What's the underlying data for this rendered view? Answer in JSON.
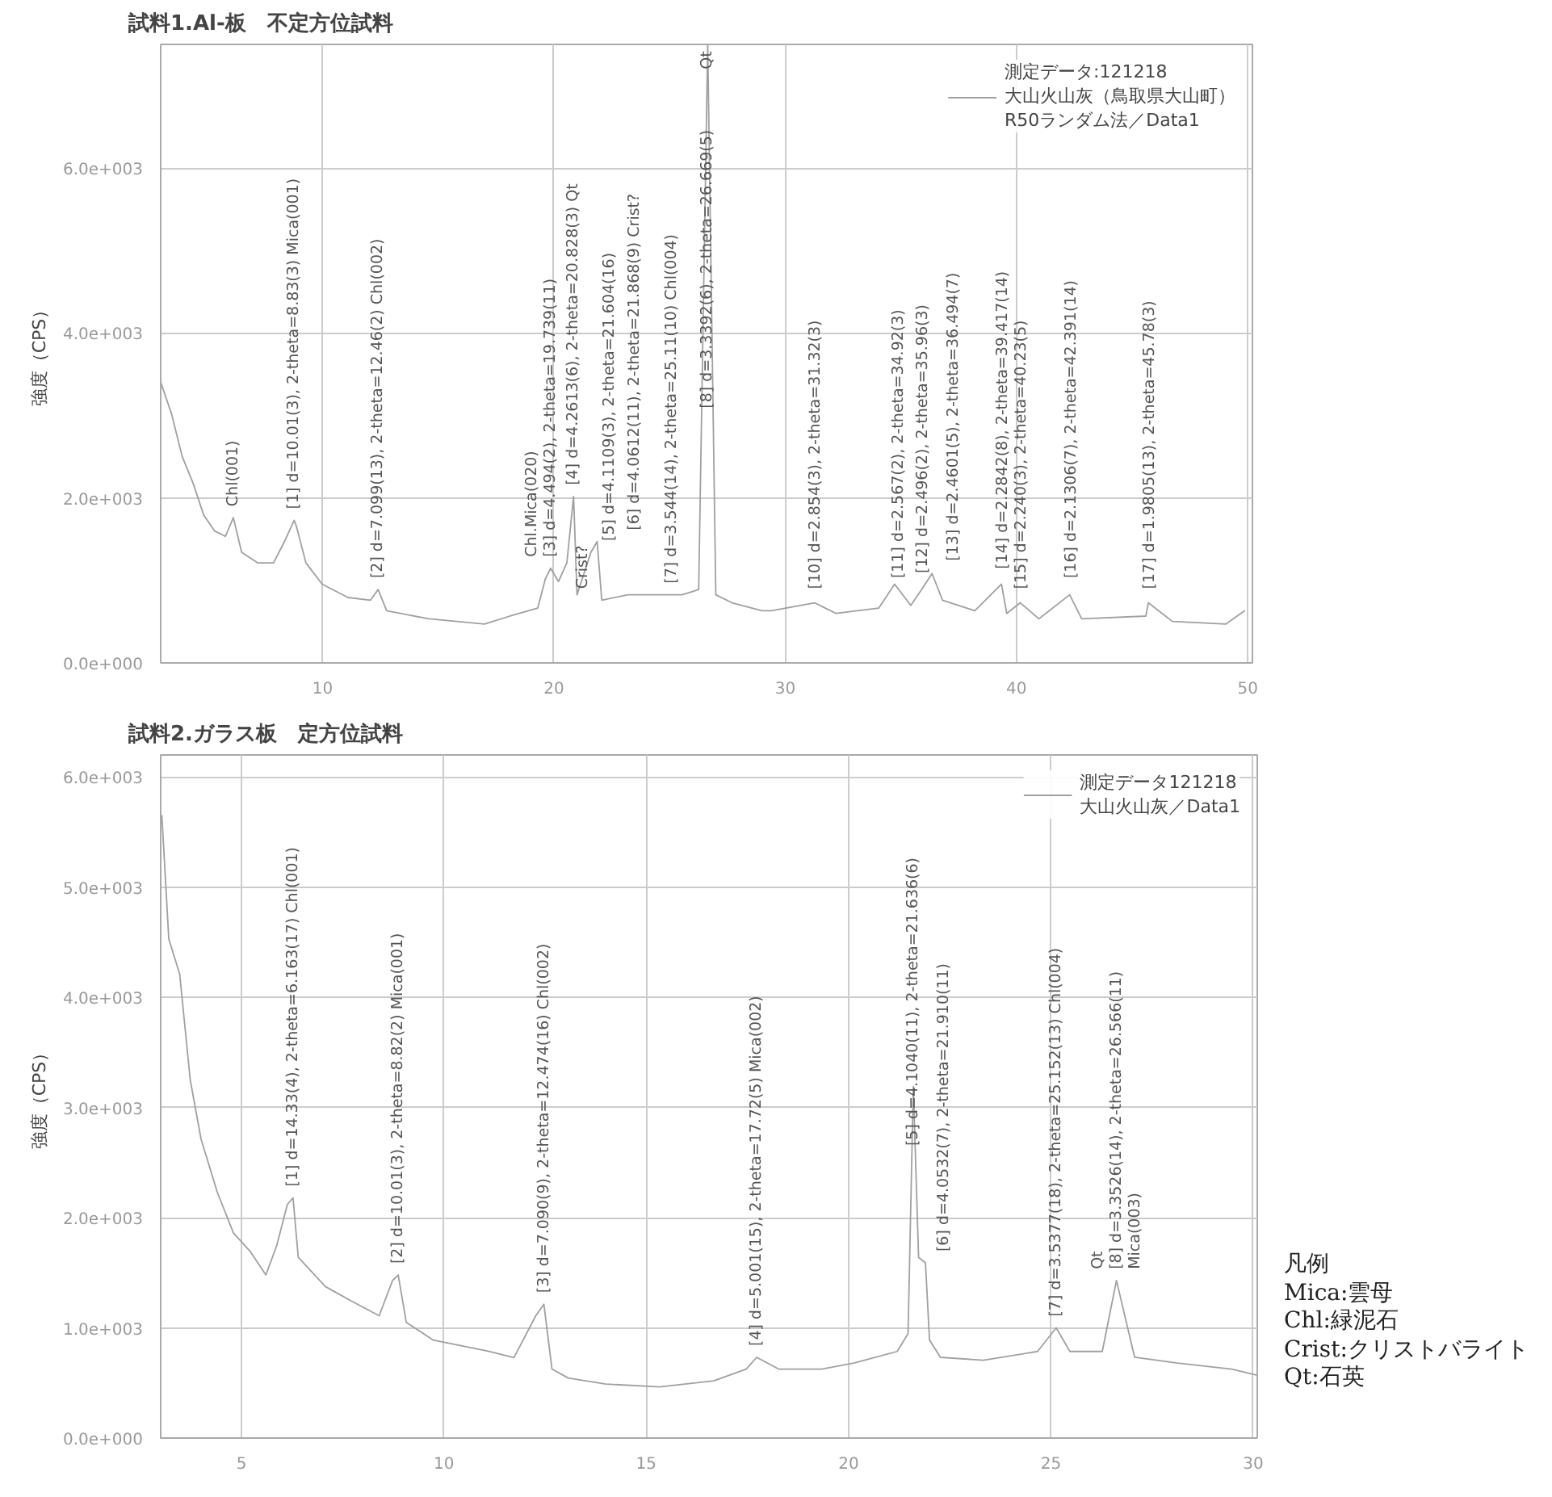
{
  "chart_data": [
    {
      "type": "line",
      "title": "試料1.Al-板　不定方位試料",
      "ylabel": "強度（CPS）",
      "xlim": [
        3,
        50.2
      ],
      "ylim": [
        0,
        7500
      ],
      "xticks": [
        10,
        20,
        30,
        40,
        50
      ],
      "yticks": [
        {
          "value": 0,
          "label": "0.0e+000"
        },
        {
          "value": 2000,
          "label": "2.0e+003"
        },
        {
          "value": 4000,
          "label": "4.0e+003"
        },
        {
          "value": 6000,
          "label": "6.0e+003"
        }
      ],
      "grid": true,
      "legend": "top right",
      "series": [
        {
          "name": "測定データ:121218\n大山火山灰（鳥取県大山町）\nR50ランダム法／Data1",
          "color": "#a0a0a0",
          "x": [
            3,
            3.47,
            3.93,
            4.4,
            4.86,
            5.33,
            5.8,
            6.14,
            6.5,
            7.19,
            7.88,
            8.35,
            8.77,
            8.86,
            9.28,
            9.98,
            11.1,
            12.07,
            12.4,
            12.77,
            14.6,
            17,
            18.1,
            19.3,
            19.63,
            19.86,
            20.2,
            20.56,
            20.85,
            21.0,
            21.6,
            21.87,
            22.07,
            23.2,
            25.1,
            25.55,
            26.26,
            26.65,
            27,
            27.7,
            29,
            29.4,
            31.27,
            32.2,
            34.04,
            34.73,
            35.43,
            35.9,
            36.35,
            36.8,
            38.2,
            39.35,
            39.58,
            40.16,
            40.97,
            42.3,
            42.82,
            45.59,
            45.7,
            46.74,
            49.05,
            49.86
          ],
          "values": [
            3406,
            3019,
            2503,
            2180,
            1793,
            1600,
            1535,
            1761,
            1342,
            1213,
            1213,
            1471,
            1729,
            1664,
            1213,
            955,
            793,
            761,
            890,
            632,
            535,
            471,
            568,
            664,
            1019,
            1148,
            987,
            1213,
            2019,
            826,
            1342,
            1471,
            761,
            826,
            826,
            826,
            890,
            7500,
            826,
            729,
            632,
            632,
            729,
            600,
            664,
            955,
            697,
            890,
            1084,
            761,
            632,
            955,
            600,
            729,
            535,
            826,
            535,
            568,
            729,
            503,
            471,
            632
          ]
        }
      ],
      "annotations": [
        {
          "text": "Chl(001)",
          "x": 6.14,
          "y": 1761
        },
        {
          "text": "[1] d=10.01(3), 2-theta=8.83(3)  Mica(001)",
          "x": 8.77,
          "y": 1729
        },
        {
          "text": "[2] d=7.099(13), 2-theta=12.46(2)  Chl(002)",
          "x": 12.4,
          "y": 890
        },
        {
          "text": "[3] d=4.494(2), 2-theta=19.739(11)",
          "x": 19.86,
          "y": 1148
        },
        {
          "text": "[4] d=4.2613(6), 2-theta=20.828(3)  Qt",
          "x": 20.85,
          "y": 2019
        },
        {
          "text": "[5] d=4.1109(3), 2-theta=21.604(16)",
          "x": 21.6,
          "y": 1342
        },
        {
          "text": "[6] d=4.0612(11), 2-theta=21.868(9)  Crist?",
          "x": 21.87,
          "y": 1471
        },
        {
          "text": "[7] d=3.544(14), 2-theta=25.11(10)  Chl(004)",
          "x": 25.1,
          "y": 826
        },
        {
          "text": "[8] d=3.3392(6), 2-theta=26.669(5)",
          "x": 26.65,
          "y": 2950
        },
        {
          "text": "Qt",
          "x": 26.65,
          "y": 7500
        },
        {
          "text": "Chl.Mica(020)",
          "x": 19.86,
          "y": 1148
        },
        {
          "text": "Crist?",
          "x": 22.07,
          "y": 761
        },
        {
          "text": "[10] d=2.854(3), 2-theta=31.32(3)",
          "x": 31.32,
          "y": 760
        },
        {
          "text": "[11] d=2.567(2), 2-theta=34.92(3)",
          "x": 34.92,
          "y": 890
        },
        {
          "text": "[12] d=2.496(2), 2-theta=35.96(3)",
          "x": 35.96,
          "y": 950
        },
        {
          "text": "[13] d=2.4601(5), 2-theta=36.494(7)",
          "x": 36.49,
          "y": 1100
        },
        {
          "text": "[14] d=2.2842(8), 2-theta=39.417(14)",
          "x": 39.42,
          "y": 1000
        },
        {
          "text": "[15] d=2.240(3), 2-theta=40.23(5)",
          "x": 40.23,
          "y": 760
        },
        {
          "text": "[16] d=2.1306(7), 2-theta=42.391(14)",
          "x": 42.39,
          "y": 890
        },
        {
          "text": "[17] d=1.9805(13), 2-theta=45.78(3)",
          "x": 45.78,
          "y": 760
        }
      ]
    },
    {
      "type": "line",
      "title": "試料2.ガラス板　定方位試料",
      "ylabel": "強度（CPS）",
      "xlim": [
        3,
        30.1
      ],
      "ylim": [
        0,
        6200
      ],
      "xticks": [
        5,
        10,
        15,
        20,
        25,
        30
      ],
      "yticks": [
        {
          "value": 0,
          "label": "0.0e+000"
        },
        {
          "value": 1000,
          "label": "1.0e+003"
        },
        {
          "value": 2000,
          "label": "2.0e+003"
        },
        {
          "value": 3000,
          "label": "3.0e+003"
        },
        {
          "value": 4000,
          "label": "4.0e+003"
        },
        {
          "value": 5000,
          "label": "5.0e+003"
        },
        {
          "value": 6000,
          "label": "6.0e+003"
        }
      ],
      "grid": true,
      "legend": "top right",
      "series": [
        {
          "name": "測定データ121218\n大山火山灰／Data1",
          "color": "#a0a0a0",
          "x": [
            3.03,
            3.2,
            3.47,
            3.73,
            4.0,
            4.4,
            4.8,
            5.2,
            5.6,
            5.87,
            6.13,
            6.27,
            6.4,
            7.07,
            7.73,
            8.4,
            8.73,
            8.87,
            9.07,
            9.73,
            10.4,
            11.07,
            11.73,
            12.27,
            12.47,
            12.67,
            13.07,
            14.0,
            15.33,
            16.67,
            17.47,
            17.73,
            18.27,
            19.33,
            20.13,
            21.2,
            21.47,
            21.6,
            21.73,
            21.9,
            22.0,
            22.27,
            23.33,
            24.67,
            25.13,
            25.47,
            26.27,
            26.62,
            27.07,
            28.13,
            29.47,
            30.07
          ],
          "values": [
            5650,
            4530,
            4210,
            3250,
            2710,
            2230,
            1860,
            1700,
            1480,
            1750,
            2120,
            2180,
            1640,
            1375,
            1240,
            1110,
            1430,
            1480,
            1050,
            890,
            840,
            790,
            730,
            1110,
            1215,
            626,
            545,
            490,
            465,
            520,
            626,
            733,
            626,
            626,
            680,
            786,
            947,
            3190,
            1640,
            1590,
            890,
            733,
            706,
            786,
            1000,
            786,
            786,
            1430,
            733,
            680,
            626,
            572
          ]
        }
      ],
      "annotations": [
        {
          "text": "[1] d=14.33(4), 2-theta=6.163(17)  Chl(001)",
          "x": 6.27,
          "y": 2180
        },
        {
          "text": "[2] d=10.01(3), 2-theta=8.82(2)  Mica(001)",
          "x": 8.87,
          "y": 1480
        },
        {
          "text": "[3] d=7.090(9), 2-theta=12.474(16)  Chl(002)",
          "x": 12.47,
          "y": 1215
        },
        {
          "text": "[4] d=5.001(15), 2-theta=17.72(5)  Mica(002)",
          "x": 17.73,
          "y": 733
        },
        {
          "text": "[5] d=4.1040(11), 2-theta=21.636(6)",
          "x": 21.6,
          "y": 2550
        },
        {
          "text": "[6] d=4.0532(7), 2-theta=21.910(11)",
          "x": 21.9,
          "y": 1590
        },
        {
          "text": "[7] d=3.5377(18), 2-theta=25.152(13)  Chl(004)",
          "x": 25.13,
          "y": 1000
        },
        {
          "text": "[8] d=3.3526(14), 2-theta=26.566(11)",
          "x": 26.62,
          "y": 1430
        },
        {
          "text": "Mica(003)",
          "x": 26.62,
          "y": 1430
        },
        {
          "text": "Qt",
          "x": 26.62,
          "y": 1430
        },
        "凡例\nMica:雲母\nChl:緑泥石\nCrist:クリストバライト\nQt:石英"
      ]
    }
  ]
}
